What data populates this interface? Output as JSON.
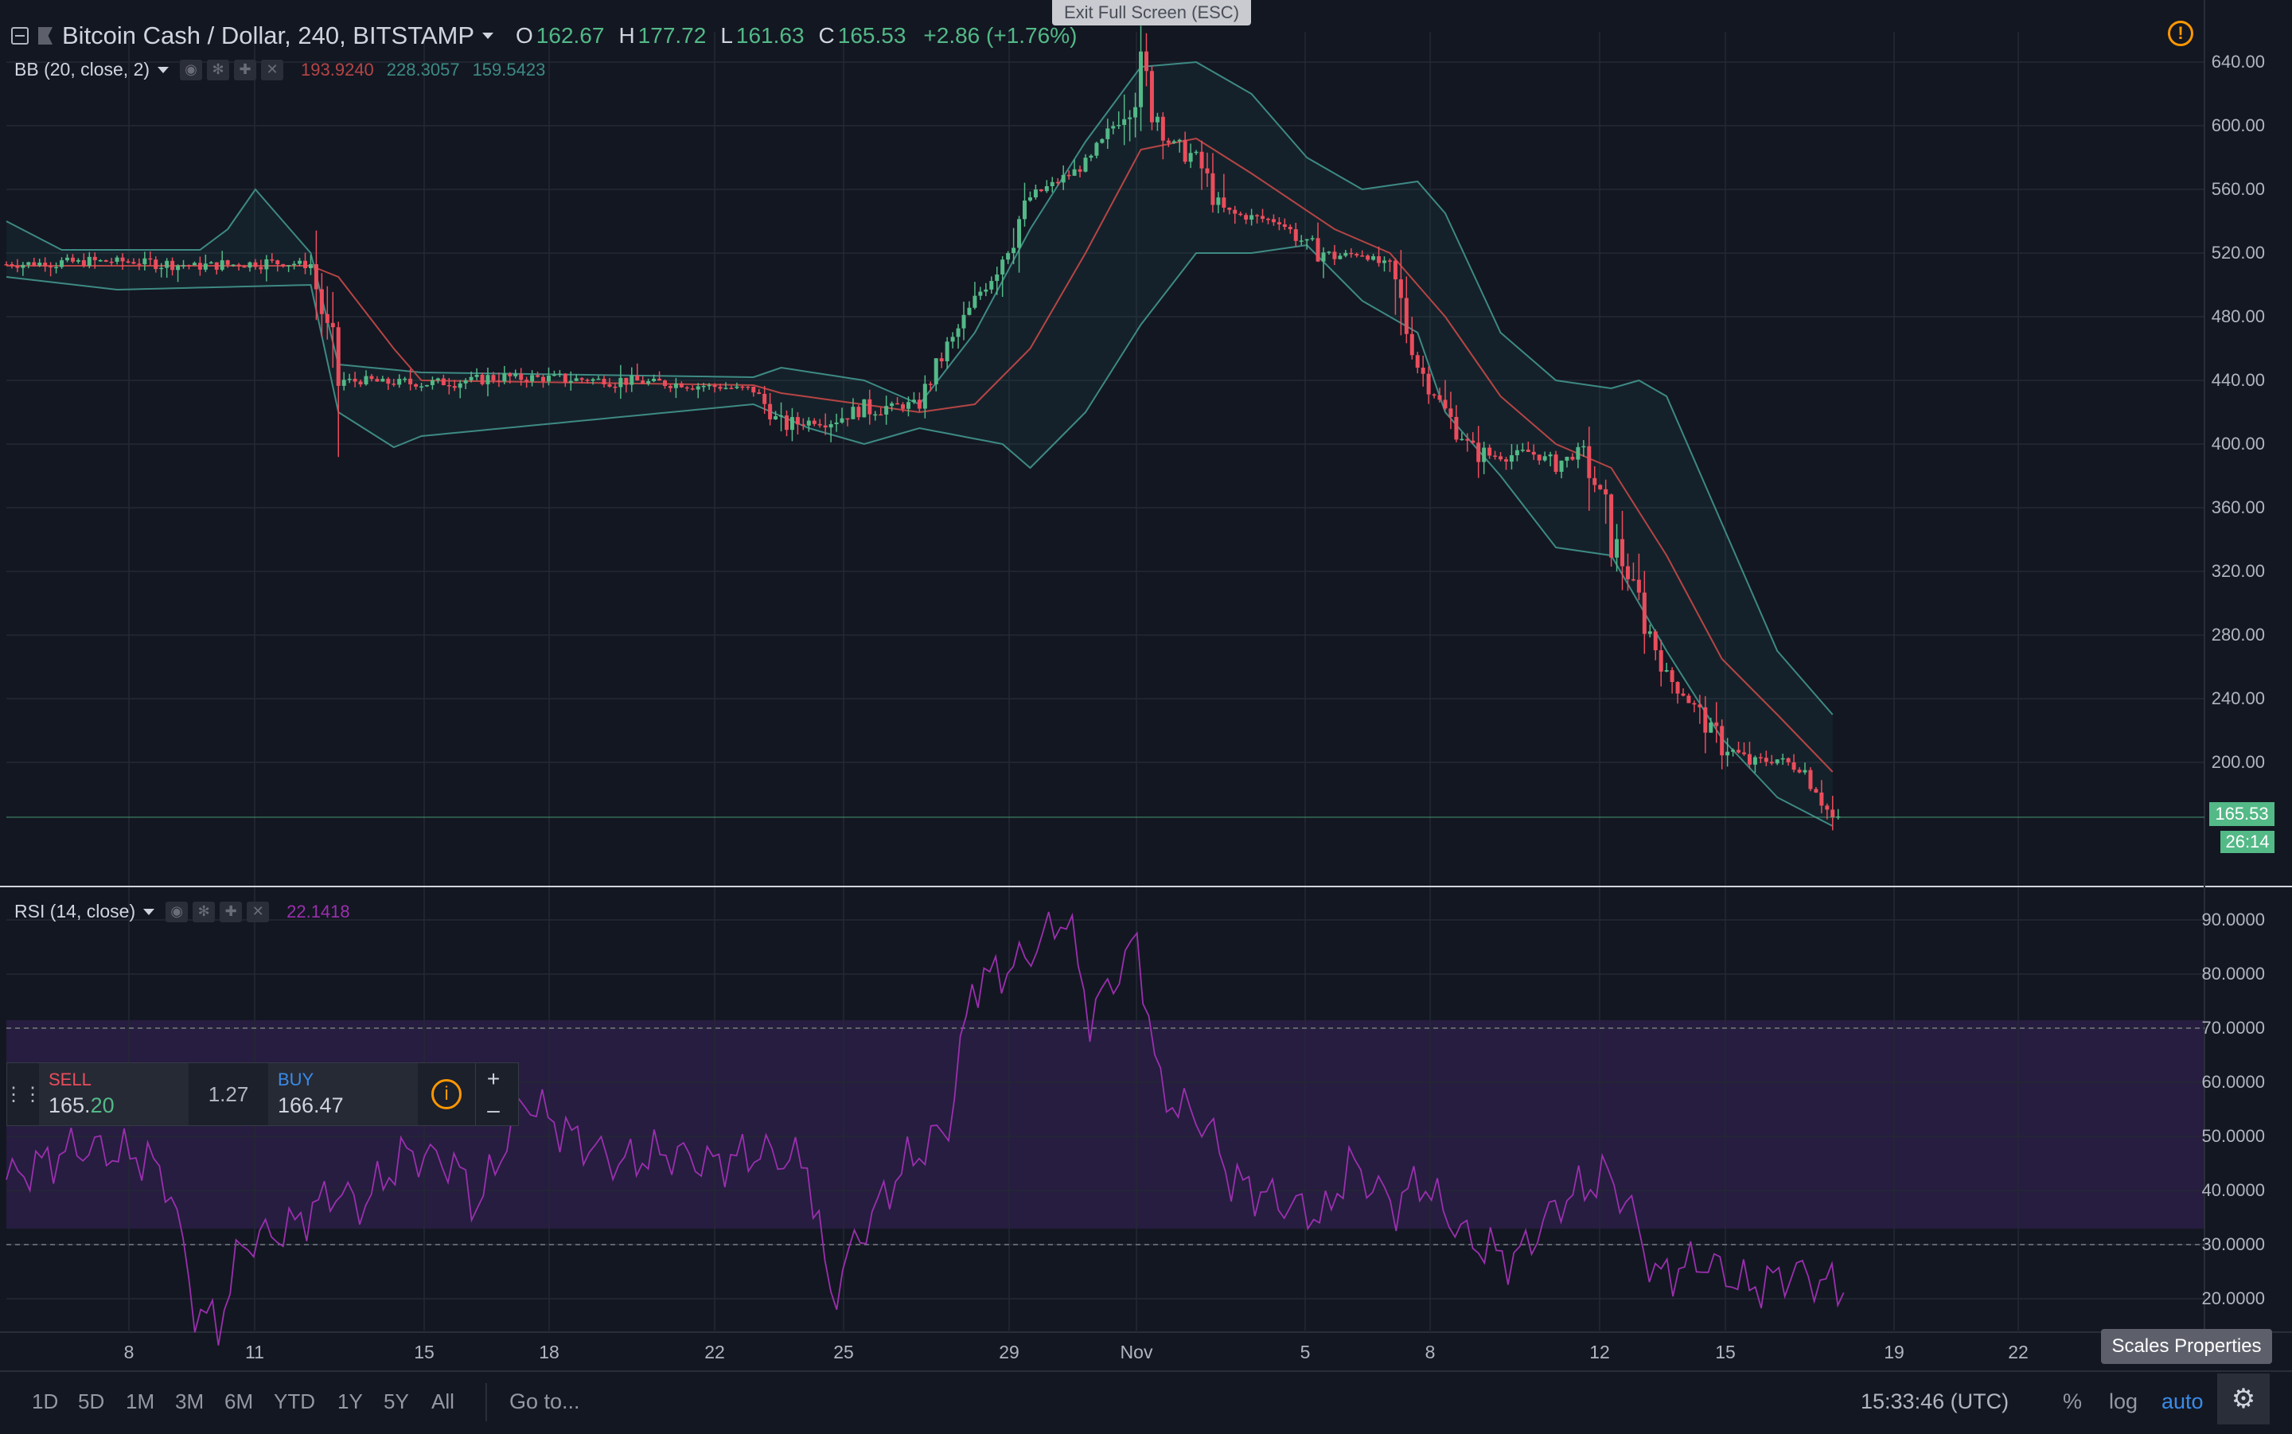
{
  "fullscreen_hint": "Exit Full Screen (ESC)",
  "header": {
    "symbol": "Bitcoin Cash / Dollar, 240, BITSTAMP",
    "ohlc": [
      {
        "k": "O",
        "v": "162.67"
      },
      {
        "k": "H",
        "v": "177.72"
      },
      {
        "k": "L",
        "v": "161.63"
      },
      {
        "k": "C",
        "v": "165.53"
      }
    ],
    "change": "+2.86 (+1.76%)"
  },
  "bb": {
    "label": "BB (20, close, 2)",
    "basis": "193.9240",
    "upper": "228.3057",
    "lower": "159.5423",
    "colors": {
      "basis": "#b54545",
      "band": "#3d8a84"
    }
  },
  "rsi": {
    "label": "RSI (14, close)",
    "value": "22.1418",
    "color": "#9b2fae"
  },
  "price_axis": {
    "labels": [
      "640.00",
      "600.00",
      "560.00",
      "520.00",
      "480.00",
      "440.00",
      "400.00",
      "360.00",
      "320.00",
      "280.00",
      "240.00",
      "200.00"
    ],
    "last_price": "165.53",
    "countdown": "26:14"
  },
  "rsi_axis": {
    "labels": [
      "90.0000",
      "80.0000",
      "70.0000",
      "60.0000",
      "50.0000",
      "40.0000",
      "30.0000",
      "20.0000"
    ]
  },
  "time_axis": {
    "labels": [
      "8",
      "11",
      "15",
      "18",
      "22",
      "25",
      "29",
      "Nov",
      "5",
      "8",
      "12",
      "15",
      "19",
      "22"
    ]
  },
  "trade_panel": {
    "sell_label": "SELL",
    "sell_price_main": "165.",
    "sell_price_frac": "20",
    "spread": "1.27",
    "buy_label": "BUY",
    "buy_price": "166.47",
    "plus": "+",
    "minus": "–"
  },
  "bottom_bar": {
    "timeframes": [
      "1D",
      "5D",
      "1M",
      "3M",
      "6M",
      "YTD",
      "1Y",
      "5Y",
      "All"
    ],
    "goto": "Go to...",
    "clock": "15:33:46 (UTC)",
    "percent": "%",
    "log": "log",
    "auto": "auto"
  },
  "scales_tooltip": "Scales Properties",
  "colors": {
    "bg": "#131722",
    "up": "#53b987",
    "down": "#eb4d5c",
    "grid": "#242833"
  },
  "chart_data": {
    "type": "candlestick",
    "title": "Bitcoin Cash / Dollar, 240, BITSTAMP",
    "x": [
      "8",
      "11",
      "15",
      "18",
      "22",
      "25",
      "29",
      "Nov",
      "5",
      "8",
      "12",
      "15",
      "19",
      "22"
    ],
    "close_path": [
      [
        0,
        513
      ],
      [
        4,
        515
      ],
      [
        7,
        512
      ],
      [
        10,
        514
      ],
      [
        11,
        513
      ],
      [
        12,
        440
      ],
      [
        15,
        438
      ],
      [
        18,
        442
      ],
      [
        22,
        440
      ],
      [
        25,
        437
      ],
      [
        27,
        434
      ],
      [
        28,
        412
      ],
      [
        30,
        416
      ],
      [
        31,
        422
      ],
      [
        33,
        425
      ],
      [
        34,
        460
      ],
      [
        36,
        520
      ],
      [
        37,
        555
      ],
      [
        39,
        575
      ],
      [
        40,
        600
      ],
      [
        41,
        632
      ],
      [
        42,
        590
      ],
      [
        43,
        580
      ],
      [
        44,
        545
      ],
      [
        46,
        540
      ],
      [
        47,
        525
      ],
      [
        48,
        518
      ],
      [
        49,
        520
      ],
      [
        50,
        510
      ],
      [
        51,
        450
      ],
      [
        52,
        420
      ],
      [
        53,
        395
      ],
      [
        54,
        392
      ],
      [
        55,
        395
      ],
      [
        56,
        388
      ],
      [
        57,
        395
      ],
      [
        58,
        345
      ],
      [
        59,
        300
      ],
      [
        60,
        255
      ],
      [
        61,
        235
      ],
      [
        62,
        212
      ],
      [
        63,
        200
      ],
      [
        64,
        202
      ],
      [
        65,
        195
      ],
      [
        66,
        164
      ]
    ],
    "bb_basis_path": [
      [
        0,
        512
      ],
      [
        11,
        512
      ],
      [
        12,
        505
      ],
      [
        14,
        460
      ],
      [
        15,
        440
      ],
      [
        27,
        437
      ],
      [
        28,
        432
      ],
      [
        33,
        420
      ],
      [
        35,
        425
      ],
      [
        37,
        460
      ],
      [
        39,
        520
      ],
      [
        41,
        585
      ],
      [
        43,
        592
      ],
      [
        45,
        570
      ],
      [
        48,
        535
      ],
      [
        50,
        520
      ],
      [
        52,
        480
      ],
      [
        54,
        430
      ],
      [
        56,
        400
      ],
      [
        58,
        385
      ],
      [
        60,
        330
      ],
      [
        62,
        265
      ],
      [
        64,
        230
      ],
      [
        66,
        194
      ]
    ],
    "bb_upper_path": [
      [
        0,
        540
      ],
      [
        2,
        522
      ],
      [
        7,
        522
      ],
      [
        8,
        535
      ],
      [
        9,
        560
      ],
      [
        11,
        520
      ],
      [
        12,
        450
      ],
      [
        15,
        445
      ],
      [
        27,
        442
      ],
      [
        28,
        448
      ],
      [
        31,
        440
      ],
      [
        33,
        425
      ],
      [
        35,
        470
      ],
      [
        37,
        535
      ],
      [
        39,
        590
      ],
      [
        41,
        637
      ],
      [
        43,
        640
      ],
      [
        45,
        620
      ],
      [
        47,
        580
      ],
      [
        49,
        560
      ],
      [
        51,
        565
      ],
      [
        52,
        545
      ],
      [
        54,
        470
      ],
      [
        56,
        440
      ],
      [
        58,
        435
      ],
      [
        59,
        440
      ],
      [
        60,
        430
      ],
      [
        62,
        350
      ],
      [
        64,
        270
      ],
      [
        66,
        230
      ]
    ],
    "bb_lower_path": [
      [
        0,
        505
      ],
      [
        4,
        497
      ],
      [
        11,
        500
      ],
      [
        12,
        420
      ],
      [
        14,
        398
      ],
      [
        15,
        405
      ],
      [
        27,
        425
      ],
      [
        29,
        410
      ],
      [
        31,
        400
      ],
      [
        33,
        410
      ],
      [
        36,
        400
      ],
      [
        37,
        385
      ],
      [
        39,
        420
      ],
      [
        41,
        475
      ],
      [
        43,
        520
      ],
      [
        45,
        520
      ],
      [
        47,
        525
      ],
      [
        49,
        490
      ],
      [
        51,
        470
      ],
      [
        52,
        420
      ],
      [
        54,
        380
      ],
      [
        56,
        335
      ],
      [
        58,
        330
      ],
      [
        60,
        270
      ],
      [
        62,
        215
      ],
      [
        64,
        178
      ],
      [
        66,
        160
      ]
    ],
    "rsi_path": [
      [
        0,
        42
      ],
      [
        3,
        48
      ],
      [
        6,
        46
      ],
      [
        7,
        40
      ],
      [
        8,
        18
      ],
      [
        9,
        15
      ],
      [
        10,
        30
      ],
      [
        12,
        33
      ],
      [
        14,
        40
      ],
      [
        15,
        37
      ],
      [
        17,
        47
      ],
      [
        19,
        45
      ],
      [
        20,
        37
      ],
      [
        22,
        57
      ],
      [
        24,
        50
      ],
      [
        26,
        45
      ],
      [
        28,
        47
      ],
      [
        30,
        45
      ],
      [
        32,
        47
      ],
      [
        34,
        45
      ],
      [
        35,
        20
      ],
      [
        36,
        30
      ],
      [
        38,
        44
      ],
      [
        40,
        52
      ],
      [
        41,
        78
      ],
      [
        43,
        82
      ],
      [
        45,
        91
      ],
      [
        46,
        72
      ],
      [
        48,
        86
      ],
      [
        49,
        58
      ],
      [
        51,
        52
      ],
      [
        52,
        42
      ],
      [
        54,
        38
      ],
      [
        56,
        35
      ],
      [
        57,
        45
      ],
      [
        59,
        37
      ],
      [
        60,
        42
      ],
      [
        62,
        31
      ],
      [
        64,
        27
      ],
      [
        66,
        38
      ],
      [
        68,
        43
      ],
      [
        69,
        36
      ],
      [
        70,
        24
      ],
      [
        72,
        27
      ],
      [
        74,
        22
      ],
      [
        76,
        25
      ],
      [
        77,
        23
      ],
      [
        78,
        22
      ]
    ],
    "rsi_levels": [
      70,
      30
    ],
    "ylim_price": [
      140,
      660
    ],
    "ylim_rsi": [
      13,
      97
    ]
  }
}
